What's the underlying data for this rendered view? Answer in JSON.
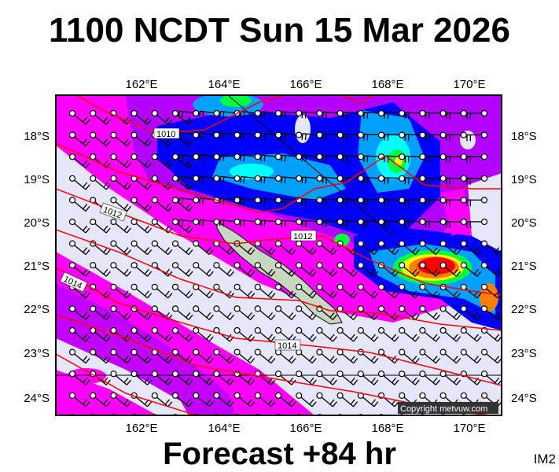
{
  "title": "1100 NCDT Sun 15 Mar 2026",
  "footer": "Forecast +84 hr",
  "image_code": "IM2",
  "copyright": "Copyright metvuw.com",
  "map": {
    "region": "New Caledonia",
    "lon_ticks": [
      "162°E",
      "164°E",
      "166°E",
      "168°E",
      "170°E"
    ],
    "lat_ticks": [
      "18°S",
      "19°S",
      "20°S",
      "21°S",
      "22°S",
      "23°S",
      "24°S"
    ],
    "isobar_labels": [
      "1010",
      "1012",
      "1012",
      "1014",
      "1014"
    ],
    "isobar_color": "#ff0000",
    "fill_colors": {
      "light": "#e6e6fa",
      "magenta": "#ff00ff",
      "purple": "#b400ff",
      "blue": "#0000ff",
      "azure": "#00a0ff",
      "cyan": "#00ffff",
      "green": "#00ff40",
      "yellow": "#ffff00",
      "orange": "#ff8000",
      "red": "#ff0000"
    },
    "land_color": "#c8d8c0"
  }
}
